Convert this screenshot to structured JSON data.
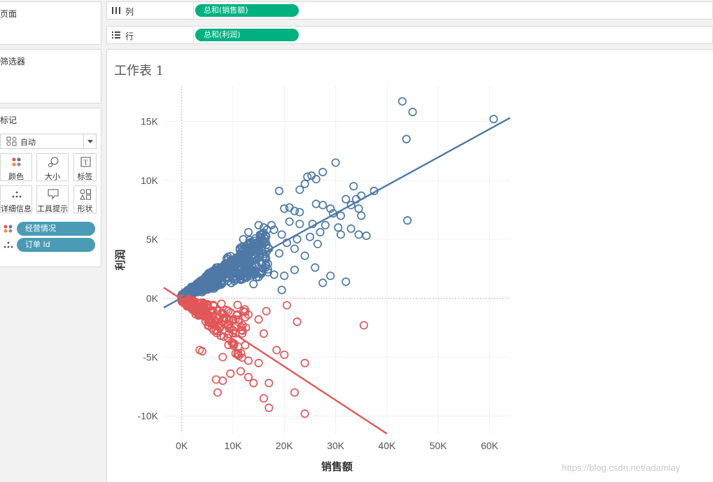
{
  "cards": {
    "pages": {
      "title": "页面"
    },
    "filters": {
      "title": "筛选器"
    },
    "marks": {
      "title": "标记",
      "mark_type": "自动",
      "buttons": [
        {
          "label": "颜色",
          "icon": "color-dots-icon"
        },
        {
          "label": "大小",
          "icon": "size-icon"
        },
        {
          "label": "标签",
          "icon": "label-icon"
        },
        {
          "label": "详细信息",
          "icon": "detail-dots-icon"
        },
        {
          "label": "工具提示",
          "icon": "tooltip-icon"
        },
        {
          "label": "形状",
          "icon": "shape-icon"
        }
      ],
      "fields": [
        {
          "label": "经营情况",
          "icon": "color-dots-icon"
        },
        {
          "label": "订单 Id",
          "icon": "detail-dots-icon"
        }
      ]
    }
  },
  "shelves": {
    "columns": {
      "label": "列",
      "pill": "总和(销售额)"
    },
    "rows": {
      "label": "行",
      "pill": "总和(利润)"
    }
  },
  "sheet": {
    "title": "工作表 1"
  },
  "colors": {
    "profit": "#4e79a7",
    "loss": "#e15759",
    "pill_measure": "#00b180",
    "pill_dim": "#4a9bb5"
  },
  "chart_data": {
    "type": "scatter",
    "xlabel": "销售额",
    "ylabel": "利润",
    "xlim": [
      -3500,
      64000
    ],
    "ylim": [
      -11500,
      18000
    ],
    "x_ticks": [
      {
        "v": 0,
        "label": "0K"
      },
      {
        "v": 10000,
        "label": "10K"
      },
      {
        "v": 20000,
        "label": "20K"
      },
      {
        "v": 30000,
        "label": "30K"
      },
      {
        "v": 40000,
        "label": "40K"
      },
      {
        "v": 50000,
        "label": "50K"
      },
      {
        "v": 60000,
        "label": "60K"
      }
    ],
    "y_ticks": [
      {
        "v": 15000,
        "label": "15K"
      },
      {
        "v": 10000,
        "label": "10K"
      },
      {
        "v": 5000,
        "label": "5K"
      },
      {
        "v": 0,
        "label": "0K"
      },
      {
        "v": -5000,
        "label": "-5K"
      },
      {
        "v": -10000,
        "label": "-10K"
      }
    ],
    "series": [
      {
        "color": "#4e79a7",
        "trend": [
          [
            -3500,
            -800
          ],
          [
            64000,
            15300
          ]
        ],
        "points": [
          [
            43000,
            16700
          ],
          [
            45000,
            15800
          ],
          [
            60800,
            15200
          ],
          [
            43800,
            13500
          ],
          [
            30000,
            11500
          ],
          [
            27500,
            10700
          ],
          [
            24500,
            10300
          ],
          [
            25300,
            10400
          ],
          [
            26200,
            10100
          ],
          [
            23000,
            9200
          ],
          [
            19000,
            9100
          ],
          [
            24000,
            9700
          ],
          [
            33500,
            9500
          ],
          [
            37500,
            9100
          ],
          [
            32000,
            8400
          ],
          [
            34000,
            8400
          ],
          [
            35000,
            8700
          ],
          [
            26200,
            8000
          ],
          [
            27500,
            7900
          ],
          [
            29000,
            7600
          ],
          [
            29500,
            7200
          ],
          [
            33000,
            7900
          ],
          [
            34500,
            7600
          ],
          [
            20000,
            7600
          ],
          [
            21000,
            7700
          ],
          [
            22000,
            7400
          ],
          [
            23000,
            7300
          ],
          [
            31000,
            7000
          ],
          [
            35000,
            7000
          ],
          [
            44000,
            6600
          ],
          [
            28000,
            6200
          ],
          [
            30500,
            6000
          ],
          [
            33000,
            5900
          ],
          [
            25500,
            6300
          ],
          [
            27000,
            5600
          ],
          [
            31000,
            5400
          ],
          [
            34500,
            5400
          ],
          [
            36000,
            5300
          ],
          [
            25000,
            5200
          ],
          [
            26500,
            4600
          ],
          [
            22000,
            4200
          ],
          [
            24000,
            3600
          ],
          [
            19000,
            3800
          ],
          [
            26000,
            2600
          ],
          [
            29000,
            1900
          ],
          [
            27500,
            1300
          ],
          [
            32000,
            1400
          ],
          [
            20000,
            1900
          ],
          [
            18000,
            2000
          ],
          [
            15000,
            1800
          ],
          [
            19500,
            700
          ],
          [
            14000,
            1200
          ],
          [
            22000,
            2400
          ],
          [
            17000,
            4200
          ],
          [
            13000,
            5600
          ],
          [
            12000,
            5000
          ],
          [
            16000,
            6000
          ],
          [
            18000,
            5800
          ],
          [
            21000,
            6500
          ],
          [
            23000,
            6300
          ],
          [
            15000,
            6200
          ],
          [
            17500,
            6200
          ],
          [
            19500,
            5400
          ],
          [
            20500,
            4700
          ],
          [
            22500,
            5000
          ]
        ]
      },
      {
        "color": "#e15759",
        "trend": [
          [
            -3500,
            900
          ],
          [
            40000,
            -11500
          ]
        ],
        "points": [
          [
            35500,
            -2300
          ],
          [
            24000,
            -9800
          ],
          [
            17000,
            -9300
          ],
          [
            22000,
            -8000
          ],
          [
            16000,
            -8500
          ],
          [
            7000,
            -8000
          ],
          [
            6700,
            -6900
          ],
          [
            8000,
            -7000
          ],
          [
            17000,
            -7200
          ],
          [
            13000,
            -6700
          ],
          [
            14000,
            -7200
          ],
          [
            24000,
            -5500
          ],
          [
            20000,
            -4800
          ],
          [
            18500,
            -4400
          ],
          [
            13000,
            -5300
          ],
          [
            11500,
            -6200
          ],
          [
            9500,
            -6400
          ],
          [
            15000,
            -5500
          ],
          [
            10500,
            -4700
          ],
          [
            8000,
            -5000
          ],
          [
            22500,
            -2000
          ],
          [
            20500,
            -600
          ],
          [
            16000,
            -3000
          ],
          [
            12500,
            -2500
          ],
          [
            15000,
            -1800
          ],
          [
            16500,
            -1100
          ],
          [
            13000,
            -1400
          ],
          [
            4000,
            -4500
          ],
          [
            3500,
            -4400
          ],
          [
            10000,
            -3800
          ]
        ]
      }
    ]
  },
  "watermark": "https://blog.csdn.net/adamlay"
}
